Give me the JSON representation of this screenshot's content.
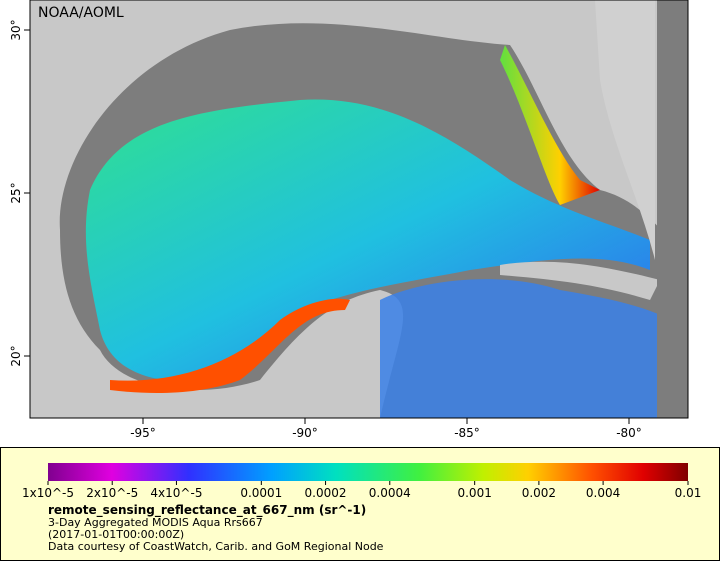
{
  "map": {
    "credit": "NOAA/AOML",
    "lat_ticks": [
      {
        "value": 30,
        "label": "30°"
      },
      {
        "value": 25,
        "label": "25°"
      },
      {
        "value": 20,
        "label": "20°"
      }
    ],
    "lon_ticks": [
      {
        "value": -95,
        "label": "-95°"
      },
      {
        "value": -90,
        "label": "-90°"
      },
      {
        "value": -85,
        "label": "-85°"
      },
      {
        "value": -80,
        "label": "-80°"
      }
    ]
  },
  "legend": {
    "ticks": [
      {
        "value": 1e-05,
        "label": "1x10^-5"
      },
      {
        "value": 2e-05,
        "label": "2x10^-5"
      },
      {
        "value": 4e-05,
        "label": "4x10^-5"
      },
      0.0001,
      0.0002,
      0.0004,
      0.001,
      0.002,
      0.004,
      0.01
    ],
    "variable": "remote_sensing_reflectance_at_667_nm (sr^-1)",
    "lines": [
      "3-Day Aggregated MODIS Aqua Rrs667",
      "(2017-01-01T00:00:00Z)",
      "Data courtesy of CoastWatch, Carib. and GoM Regional Node"
    ]
  }
}
